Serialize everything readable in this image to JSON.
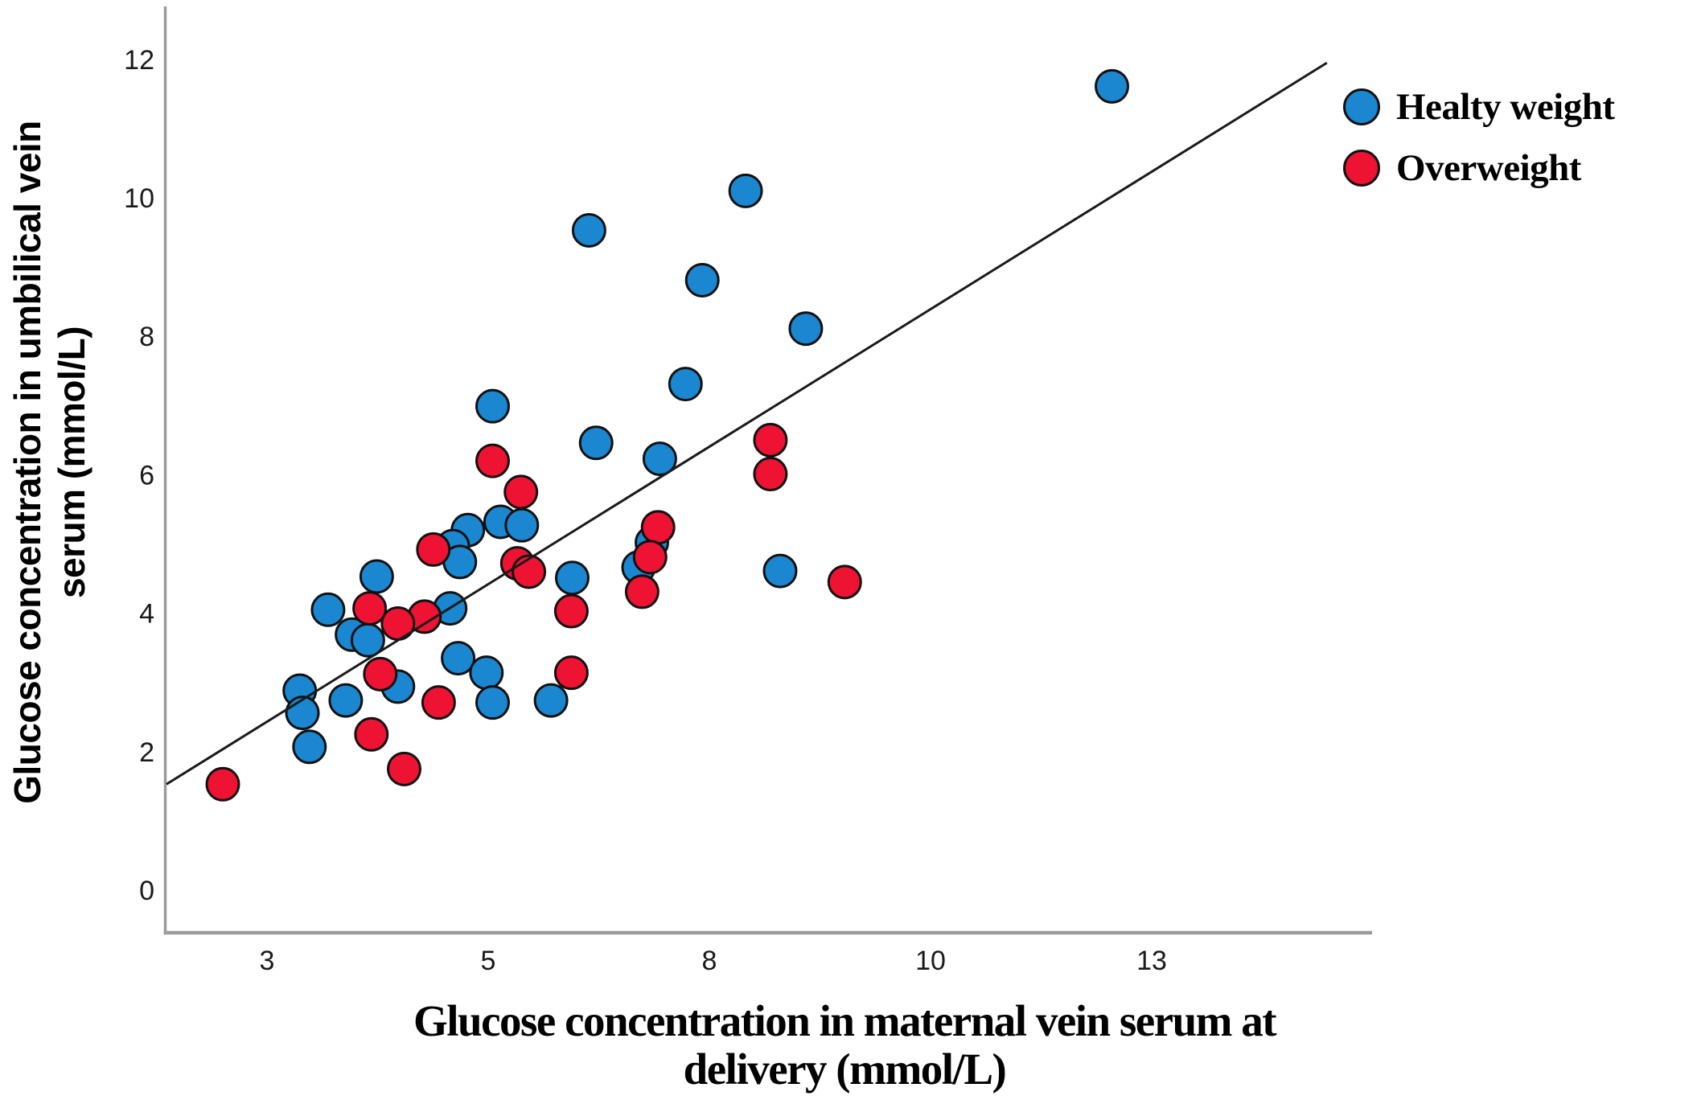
{
  "figure": {
    "y_axis_title_line1": "Glucose concentration in umbilical vein",
    "y_axis_title_line2": "serum (mmol/L)",
    "x_axis_title_line1": "Glucose concentration in maternal vein serum at",
    "x_axis_title_line2": "delivery (mmol/L)"
  },
  "legend": {
    "items": [
      {
        "label": "Healty weight",
        "color": "#1a87d0"
      },
      {
        "label": "Overweight",
        "color": "#ee1233"
      }
    ]
  },
  "chart_data": {
    "type": "scatter",
    "title": "",
    "xlabel": "Glucose concentration in maternal vein serum at delivery (mmol/L)",
    "ylabel": "Glucose concentration in umbilical vein serum (mmol/L)",
    "xlim": [
      1.36,
      14.98
    ],
    "ylim": [
      -0.6,
      12.74
    ],
    "grid": false,
    "legend_position": "top-right",
    "x_ticks": [
      {
        "label": "3",
        "value": 2.5
      },
      {
        "label": "5",
        "value": 5.0
      },
      {
        "label": "8",
        "value": 7.5
      },
      {
        "label": "10",
        "value": 10.0
      },
      {
        "label": "13",
        "value": 12.5
      }
    ],
    "y_ticks": [
      {
        "label": "0",
        "value": 0
      },
      {
        "label": "2",
        "value": 2
      },
      {
        "label": "4",
        "value": 4
      },
      {
        "label": "6",
        "value": 6
      },
      {
        "label": "8",
        "value": 8
      },
      {
        "label": "10",
        "value": 10
      },
      {
        "label": "12",
        "value": 12
      }
    ],
    "series": [
      {
        "name": "Healty weight",
        "color": "#1a87d0",
        "points": [
          [
            12.05,
            11.61
          ],
          [
            7.91,
            10.1
          ],
          [
            6.14,
            9.53
          ],
          [
            7.42,
            8.81
          ],
          [
            8.59,
            8.11
          ],
          [
            7.23,
            7.31
          ],
          [
            5.05,
            6.99
          ],
          [
            6.22,
            6.46
          ],
          [
            6.94,
            6.23
          ],
          [
            4.77,
            5.2
          ],
          [
            5.14,
            5.32
          ],
          [
            5.38,
            5.27
          ],
          [
            4.6,
            4.97
          ],
          [
            4.68,
            4.74
          ],
          [
            6.85,
            5.02
          ],
          [
            6.7,
            4.66
          ],
          [
            5.95,
            4.51
          ],
          [
            8.3,
            4.61
          ],
          [
            3.74,
            4.53
          ],
          [
            3.19,
            4.05
          ],
          [
            4.57,
            4.07
          ],
          [
            3.46,
            3.69
          ],
          [
            3.64,
            3.61
          ],
          [
            4.66,
            3.35
          ],
          [
            4.98,
            3.14
          ],
          [
            3.98,
            2.94
          ],
          [
            2.87,
            2.88
          ],
          [
            2.9,
            2.56
          ],
          [
            3.39,
            2.74
          ],
          [
            5.05,
            2.71
          ],
          [
            5.71,
            2.74
          ],
          [
            2.98,
            2.07
          ]
        ]
      },
      {
        "name": "Overweight",
        "color": "#ee1233",
        "points": [
          [
            8.19,
            6.5
          ],
          [
            8.19,
            6.01
          ],
          [
            5.05,
            6.2
          ],
          [
            5.37,
            5.75
          ],
          [
            6.92,
            5.24
          ],
          [
            6.83,
            4.81
          ],
          [
            6.74,
            4.31
          ],
          [
            4.38,
            4.92
          ],
          [
            5.33,
            4.72
          ],
          [
            5.46,
            4.6
          ],
          [
            5.94,
            4.03
          ],
          [
            9.03,
            4.45
          ],
          [
            5.94,
            3.14
          ],
          [
            4.28,
            3.95
          ],
          [
            3.98,
            3.85
          ],
          [
            3.66,
            4.07
          ],
          [
            3.78,
            3.12
          ],
          [
            4.44,
            2.71
          ],
          [
            3.68,
            2.25
          ],
          [
            4.05,
            1.75
          ],
          [
            2.0,
            1.53
          ]
        ]
      }
    ],
    "trendline": {
      "x1": 1.364,
      "y1": 1.53,
      "x2": 14.48,
      "y2": 11.95,
      "color": "#1a1a1a"
    }
  }
}
